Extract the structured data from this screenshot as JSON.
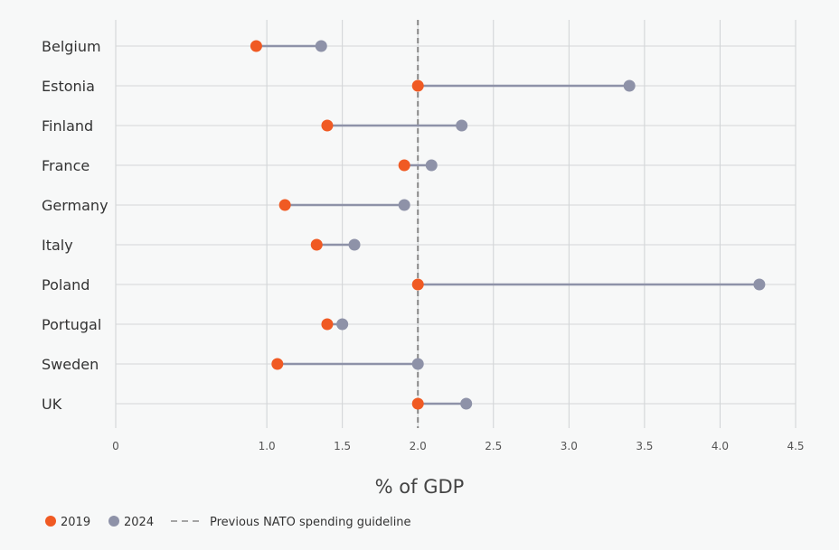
{
  "chart_data": {
    "type": "dumbbell",
    "categories": [
      "Belgium",
      "Estonia",
      "Finland",
      "France",
      "Germany",
      "Italy",
      "Poland",
      "Portugal",
      "Sweden",
      "UK"
    ],
    "series": [
      {
        "name": "2019",
        "color": "#f05a23",
        "values": [
          0.93,
          2.0,
          1.4,
          1.91,
          1.12,
          1.33,
          2.0,
          1.4,
          1.07,
          2.0
        ]
      },
      {
        "name": "2024",
        "color": "#8e92a8",
        "values": [
          1.36,
          3.4,
          2.29,
          2.09,
          1.91,
          1.58,
          4.26,
          1.5,
          2.0,
          2.32
        ]
      }
    ],
    "xlabel": "% of GDP",
    "xlim": [
      0,
      4.5
    ],
    "xticks": [
      0,
      1.0,
      1.5,
      2.0,
      2.5,
      3.0,
      3.5,
      4.0,
      4.5
    ],
    "xtick_labels": [
      "0",
      "1.0",
      "1.5",
      "2.0",
      "2.5",
      "3.0",
      "3.5",
      "4.0",
      "4.5"
    ],
    "reference_line": {
      "value": 2.0,
      "label": "Previous NATO spending guideline",
      "style": "dashed",
      "color": "#888888"
    },
    "grid": true,
    "legend": {
      "placement": "bottom-left",
      "entries": [
        {
          "label": "2019",
          "color": "#f05a23",
          "kind": "dot"
        },
        {
          "label": "2024",
          "color": "#8e92a8",
          "kind": "dot"
        },
        {
          "label": "Previous NATO spending guideline",
          "color": "#888888",
          "kind": "dashed-line"
        }
      ]
    }
  }
}
